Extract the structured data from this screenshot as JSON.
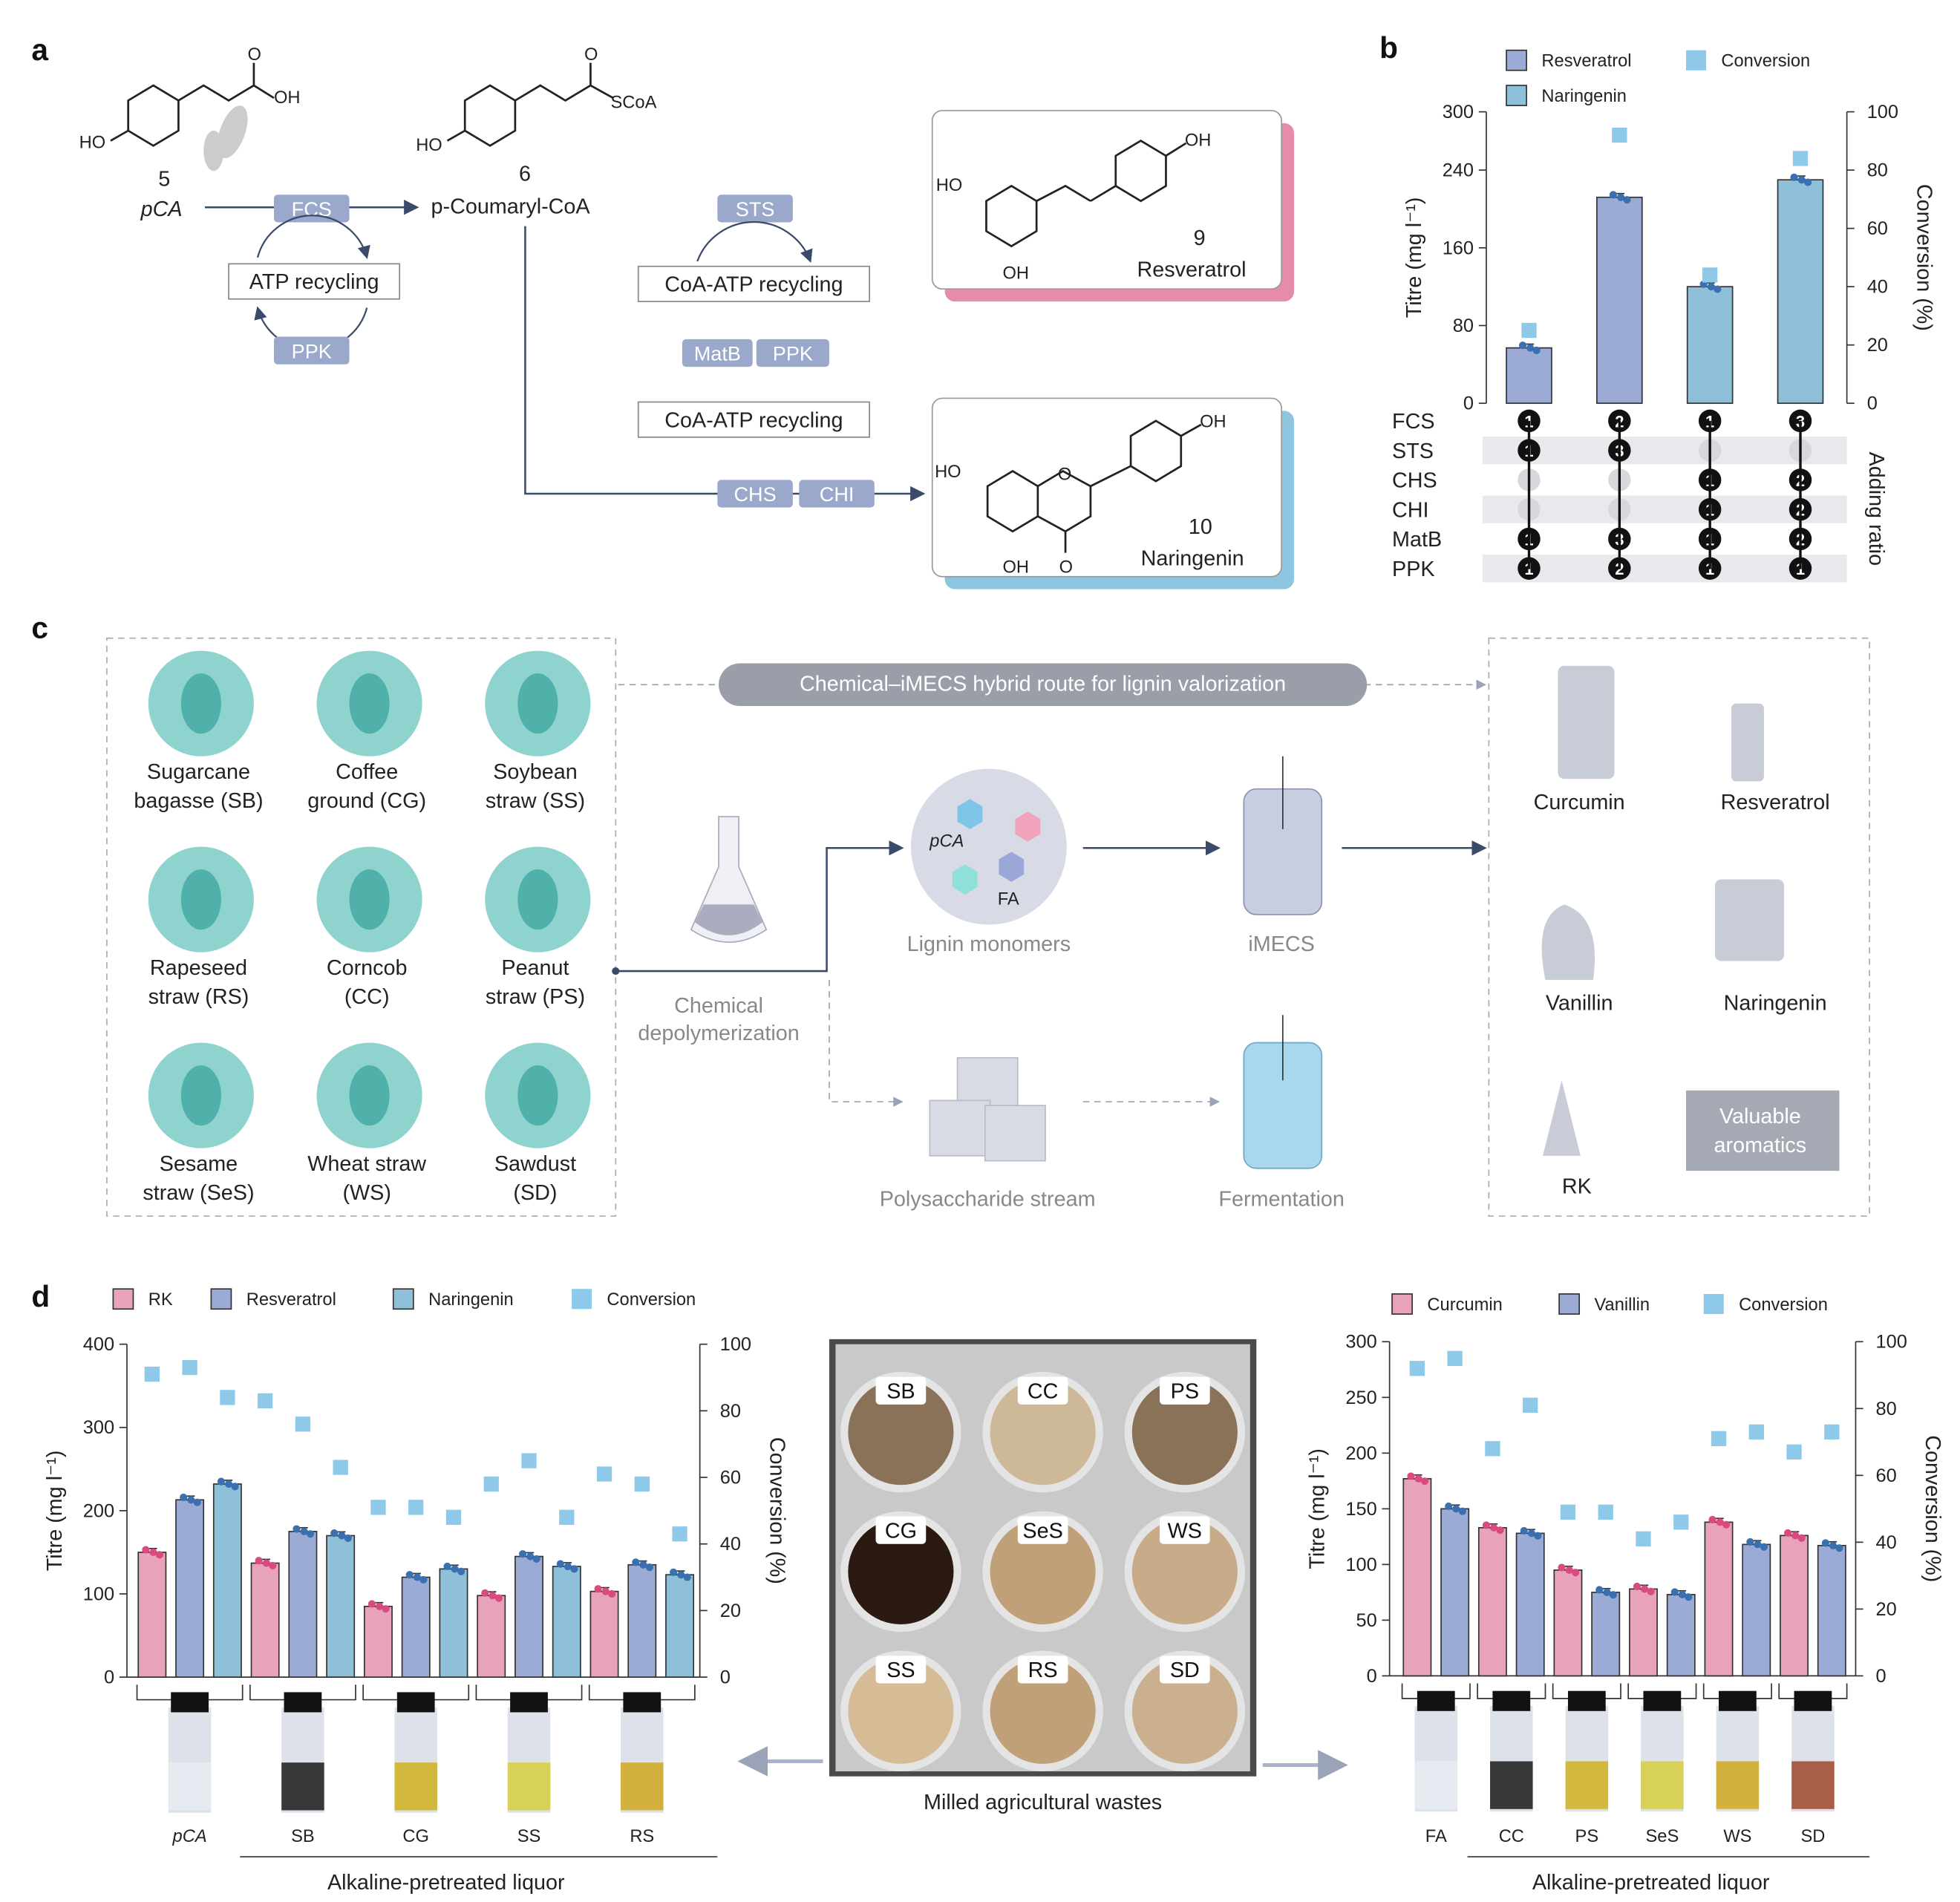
{
  "panels": {
    "a": "a",
    "b": "b",
    "c": "c",
    "d": "d"
  },
  "panel_a": {
    "compound5": {
      "number": "5",
      "name": "pCA",
      "groups": [
        "O",
        "OH",
        "HO"
      ]
    },
    "compound6": {
      "number": "6",
      "name": "p-Coumaryl-CoA",
      "groups": [
        "O",
        "SCoA",
        "HO"
      ]
    },
    "compound9": {
      "number": "9",
      "name": "Resveratrol",
      "groups": [
        "OH",
        "HO",
        "OH"
      ]
    },
    "compound10": {
      "number": "10",
      "name": "Naringenin",
      "groups": [
        "OH",
        "HO",
        "O",
        "OH",
        "O"
      ]
    },
    "enzymes": {
      "fcs": "FCS",
      "ppk1": "PPK",
      "sts": "STS",
      "matb": "MatB",
      "ppk2": "PPK",
      "chs": "CHS",
      "chi": "CHI"
    },
    "cycles": {
      "atp": "ATP recycling",
      "coa1": "CoA-ATP recycling",
      "coa2": "CoA-ATP recycling"
    }
  },
  "panel_c": {
    "banner": "Chemical–iMECS hybrid route for lignin valorization",
    "feedstocks": [
      {
        "line1": "Sugarcane",
        "line2": "bagasse (SB)"
      },
      {
        "line1": "Coffee",
        "line2": "ground (CG)"
      },
      {
        "line1": "Soybean",
        "line2": "straw (SS)"
      },
      {
        "line1": "Rapeseed",
        "line2": "straw (RS)"
      },
      {
        "line1": "Corncob",
        "line2": "(CC)"
      },
      {
        "line1": "Peanut",
        "line2": "straw (PS)"
      },
      {
        "line1": "Sesame",
        "line2": "straw (SeS)"
      },
      {
        "line1": "Wheat straw",
        "line2": "(WS)"
      },
      {
        "line1": "Sawdust",
        "line2": "(SD)"
      }
    ],
    "chem_depoly": {
      "line1": "Chemical",
      "line2": "depolymerization"
    },
    "monomers": {
      "pca": "pCA",
      "fa": "FA",
      "label": "Lignin monomers"
    },
    "imecs": "iMECS",
    "polysaccharide": "Polysaccharide stream",
    "fermentation": "Fermentation",
    "products": [
      "Curcumin",
      "Resveratrol",
      "Vanillin",
      "Naringenin",
      "RK"
    ],
    "valuable": {
      "line1": "Valuable",
      "line2": "aromatics"
    }
  },
  "panel_d_middle": {
    "plates": [
      "SB",
      "CC",
      "PS",
      "CG",
      "SeS",
      "WS",
      "SS",
      "RS",
      "SD"
    ],
    "caption": "Milled agricultural wastes"
  },
  "colors": {
    "pink": "#e8a3bb",
    "blue": "#9babd6",
    "teal": "#8ec0d9",
    "conversion": "#8fc9ea",
    "feedstock": "#8fd3cf",
    "enzyme": "#9aa8cc"
  },
  "chart_data": [
    {
      "id": "b",
      "type": "bar",
      "ylabel": "Titre (mg l⁻¹)",
      "y2label": "Conversion (%)",
      "ylim": [
        0,
        300
      ],
      "yticks": [
        0,
        80,
        160,
        240,
        300
      ],
      "y2lim": [
        0,
        100
      ],
      "y2ticks": [
        0,
        20,
        40,
        60,
        80,
        100
      ],
      "legend": [
        "Resveratrol",
        "Naringenin",
        "Conversion"
      ],
      "bars": [
        {
          "series": "Resveratrol",
          "value": 57,
          "conversion": 25
        },
        {
          "series": "Resveratrol",
          "value": 212,
          "conversion": 92
        },
        {
          "series": "Naringenin",
          "value": 120,
          "conversion": 44
        },
        {
          "series": "Naringenin",
          "value": 230,
          "conversion": 84
        }
      ],
      "ratio_table": {
        "label": "Adding ratio",
        "rows": [
          {
            "enzyme": "FCS",
            "values": [
              "1",
              "2",
              "1",
              "3"
            ]
          },
          {
            "enzyme": "STS",
            "values": [
              "1",
              "3",
              "",
              ""
            ]
          },
          {
            "enzyme": "CHS",
            "values": [
              "",
              "",
              "1",
              "2"
            ]
          },
          {
            "enzyme": "CHI",
            "values": [
              "",
              "",
              "1",
              "2"
            ]
          },
          {
            "enzyme": "MatB",
            "values": [
              "1",
              "3",
              "1",
              "2"
            ]
          },
          {
            "enzyme": "PPK",
            "values": [
              "1",
              "2",
              "1",
              "1"
            ]
          }
        ]
      }
    },
    {
      "id": "d-left",
      "type": "bar",
      "ylabel": "Titre (mg l⁻¹)",
      "y2label": "Conversion (%)",
      "xlabel": "Alkaline-pretreated liquor",
      "ylim": [
        0,
        400
      ],
      "yticks": [
        0,
        100,
        200,
        300,
        400
      ],
      "y2lim": [
        0,
        100
      ],
      "y2ticks": [
        0,
        20,
        40,
        60,
        80,
        100
      ],
      "legend": [
        "RK",
        "Resveratrol",
        "Naringenin",
        "Conversion"
      ],
      "categories": [
        "pCA",
        "SB",
        "CG",
        "SS",
        "RS"
      ],
      "series": [
        {
          "name": "RK",
          "values": [
            150,
            137,
            85,
            98,
            103
          ],
          "conversion": [
            91,
            83,
            51,
            58,
            61
          ]
        },
        {
          "name": "Resveratrol",
          "values": [
            213,
            175,
            120,
            145,
            135
          ],
          "conversion": [
            93,
            76,
            51,
            65,
            58
          ]
        },
        {
          "name": "Naringenin",
          "values": [
            232,
            170,
            130,
            133,
            123
          ],
          "conversion": [
            84,
            63,
            48,
            48,
            43
          ]
        }
      ]
    },
    {
      "id": "d-right",
      "type": "bar",
      "ylabel": "Titre (mg l⁻¹)",
      "y2label": "Conversion (%)",
      "xlabel": "Alkaline-pretreated liquor",
      "ylim": [
        0,
        300
      ],
      "yticks": [
        0,
        50,
        100,
        150,
        200,
        250,
        300
      ],
      "y2lim": [
        0,
        100
      ],
      "y2ticks": [
        0,
        20,
        40,
        60,
        80,
        100
      ],
      "legend": [
        "Curcumin",
        "Vanillin",
        "Conversion"
      ],
      "categories": [
        "FA",
        "CC",
        "PS",
        "SeS",
        "WS",
        "SD"
      ],
      "series": [
        {
          "name": "Curcumin",
          "values": [
            177,
            133,
            95,
            78,
            138,
            126
          ],
          "conversion": [
            92,
            68,
            49,
            41,
            71,
            67
          ]
        },
        {
          "name": "Vanillin",
          "values": [
            150,
            128,
            75,
            73,
            118,
            117
          ],
          "conversion": [
            95,
            81,
            49,
            46,
            73,
            73
          ]
        }
      ]
    }
  ]
}
